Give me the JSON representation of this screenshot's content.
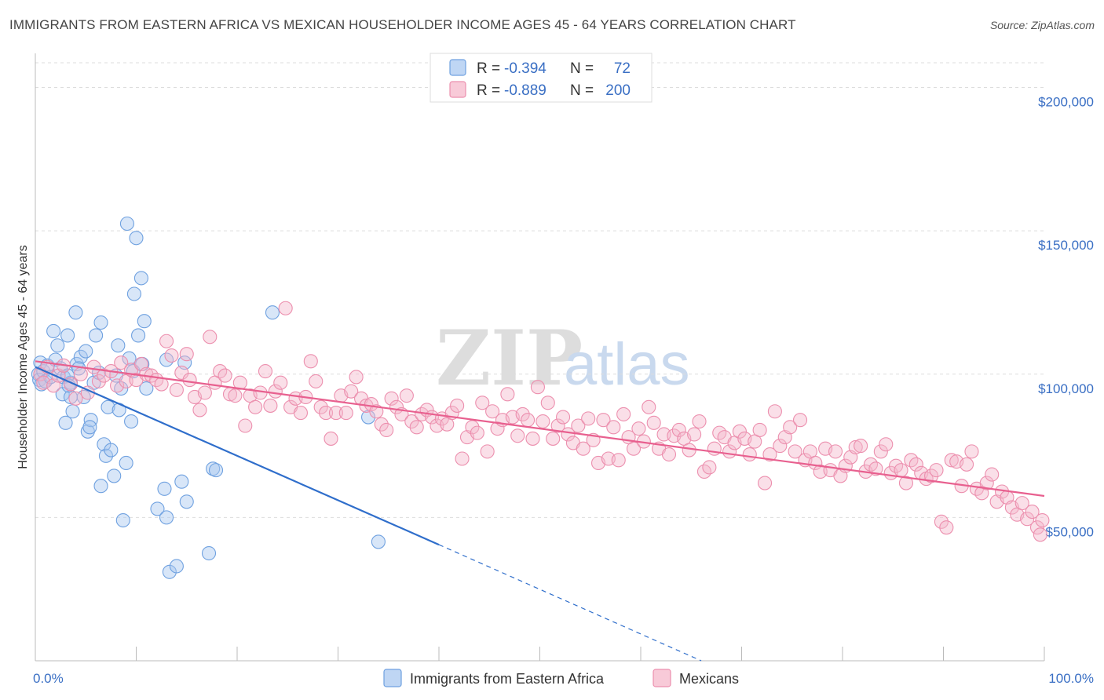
{
  "title": "IMMIGRANTS FROM EASTERN AFRICA VS MEXICAN HOUSEHOLDER INCOME AGES 45 - 64 YEARS CORRELATION CHART",
  "source": "Source: ZipAtlas.com",
  "watermark": {
    "zip": "ZIP",
    "atlas": "atlas"
  },
  "legend": {
    "rows": [
      {
        "r_label": "R = ",
        "r_value": "-0.394",
        "n_label": "N = ",
        "n_value": "72",
        "color": "#a9c8f0"
      },
      {
        "r_label": "R = ",
        "r_value": "-0.889",
        "n_label": "N = ",
        "n_value": "200",
        "color": "#f5b8cb"
      }
    ]
  },
  "chart_data": {
    "type": "scatter",
    "xlabel": "",
    "ylabel": "Householder Income Ages 45 - 64 years",
    "xlim": [
      0,
      100
    ],
    "ylim": [
      0,
      210000
    ],
    "x_tick_labels": [
      "0.0%",
      "100.0%"
    ],
    "y_ticks": [
      50000,
      100000,
      150000,
      200000
    ],
    "y_tick_labels": [
      "$50,000",
      "$100,000",
      "$150,000",
      "$200,000"
    ],
    "grid": true,
    "series": [
      {
        "name": "Immigrants from Eastern Africa",
        "color": "#6fa1e0",
        "fill": "#a9c8f0",
        "trend": {
          "x0": 0,
          "y0": 102500,
          "x1": 40,
          "y1": 40500,
          "dash_to_x": 66,
          "dash_to_y": 0,
          "color": "#2f6ecb"
        },
        "points": [
          [
            0.3,
            100000
          ],
          [
            0.4,
            98000
          ],
          [
            0.5,
            104000
          ],
          [
            0.6,
            96500
          ],
          [
            0.8,
            101000
          ],
          [
            1.0,
            97500
          ],
          [
            1.2,
            103000
          ],
          [
            1.5,
            99000
          ],
          [
            1.8,
            115000
          ],
          [
            2.0,
            105000
          ],
          [
            2.2,
            110000
          ],
          [
            2.5,
            102000
          ],
          [
            2.7,
            93000
          ],
          [
            2.8,
            99000
          ],
          [
            3.0,
            83000
          ],
          [
            3.2,
            113500
          ],
          [
            3.5,
            92000
          ],
          [
            3.7,
            87000
          ],
          [
            3.5,
            97000
          ],
          [
            3.2,
            99500
          ],
          [
            3.3,
            96000
          ],
          [
            4.0,
            121500
          ],
          [
            4.1,
            103500
          ],
          [
            4.5,
            106000
          ],
          [
            4.8,
            92000
          ],
          [
            4.3,
            102000
          ],
          [
            5.0,
            108000
          ],
          [
            5.2,
            80000
          ],
          [
            5.5,
            84000
          ],
          [
            5.4,
            81500
          ],
          [
            5.8,
            97000
          ],
          [
            6.0,
            113500
          ],
          [
            6.3,
            100500
          ],
          [
            6.5,
            61000
          ],
          [
            6.8,
            75500
          ],
          [
            7.0,
            71500
          ],
          [
            7.2,
            88500
          ],
          [
            7.5,
            73500
          ],
          [
            7.8,
            64500
          ],
          [
            8.0,
            99500
          ],
          [
            8.3,
            87500
          ],
          [
            8.5,
            95000
          ],
          [
            8.7,
            49000
          ],
          [
            9.0,
            69000
          ],
          [
            9.3,
            105500
          ],
          [
            9.5,
            83500
          ],
          [
            9.7,
            101000
          ],
          [
            10.0,
            147500
          ],
          [
            10.2,
            113500
          ],
          [
            10.5,
            133500
          ],
          [
            8.2,
            110000
          ],
          [
            6.5,
            118000
          ],
          [
            9.1,
            152500
          ],
          [
            9.8,
            128000
          ],
          [
            10.8,
            118500
          ],
          [
            11.0,
            95000
          ],
          [
            10.6,
            103500
          ],
          [
            12.1,
            53000
          ],
          [
            12.8,
            60000
          ],
          [
            13.0,
            50000
          ],
          [
            13.3,
            31000
          ],
          [
            14.0,
            33000
          ],
          [
            14.5,
            62500
          ],
          [
            15.0,
            55500
          ],
          [
            17.2,
            37500
          ],
          [
            17.6,
            67000
          ],
          [
            17.9,
            66500
          ],
          [
            14.8,
            104000
          ],
          [
            13.0,
            105000
          ],
          [
            23.5,
            121500
          ],
          [
            33.0,
            85000
          ],
          [
            34.0,
            41500
          ]
        ]
      },
      {
        "name": "Mexicans",
        "color": "#ec8fae",
        "fill": "#f5b8cb",
        "trend": {
          "x0": 0,
          "y0": 104500,
          "x1": 100,
          "y1": 57500,
          "color": "#e8608f"
        },
        "points": [
          [
            0.5,
            100000
          ],
          [
            0.8,
            97000
          ],
          [
            1.2,
            102500
          ],
          [
            1.8,
            96000
          ],
          [
            2.3,
            99500
          ],
          [
            2.8,
            103000
          ],
          [
            3.5,
            96500
          ],
          [
            4.0,
            91500
          ],
          [
            4.5,
            100000
          ],
          [
            5.2,
            93500
          ],
          [
            5.8,
            102500
          ],
          [
            6.3,
            97500
          ],
          [
            6.8,
            99500
          ],
          [
            7.5,
            101000
          ],
          [
            8.1,
            96000
          ],
          [
            8.5,
            104000
          ],
          [
            9.0,
            97500
          ],
          [
            9.5,
            101500
          ],
          [
            10.0,
            98000
          ],
          [
            10.5,
            103500
          ],
          [
            11.0,
            100000
          ],
          [
            11.5,
            99500
          ],
          [
            12.0,
            98000
          ],
          [
            12.5,
            96500
          ],
          [
            13.0,
            111500
          ],
          [
            13.5,
            106500
          ],
          [
            14.0,
            94500
          ],
          [
            14.5,
            100500
          ],
          [
            15.0,
            107000
          ],
          [
            15.3,
            98000
          ],
          [
            15.8,
            92000
          ],
          [
            16.3,
            87500
          ],
          [
            16.8,
            93500
          ],
          [
            17.3,
            113000
          ],
          [
            17.8,
            97000
          ],
          [
            18.3,
            101000
          ],
          [
            18.8,
            99500
          ],
          [
            19.3,
            93000
          ],
          [
            19.8,
            92500
          ],
          [
            20.3,
            97000
          ],
          [
            20.8,
            82000
          ],
          [
            21.3,
            92500
          ],
          [
            21.8,
            88500
          ],
          [
            22.3,
            93500
          ],
          [
            22.8,
            101000
          ],
          [
            23.3,
            89000
          ],
          [
            23.8,
            94000
          ],
          [
            24.3,
            97000
          ],
          [
            24.8,
            123000
          ],
          [
            25.3,
            88500
          ],
          [
            25.8,
            91500
          ],
          [
            26.3,
            86500
          ],
          [
            26.8,
            92000
          ],
          [
            27.3,
            104500
          ],
          [
            27.8,
            97500
          ],
          [
            28.3,
            88500
          ],
          [
            28.8,
            86500
          ],
          [
            29.3,
            77500
          ],
          [
            29.8,
            86500
          ],
          [
            30.3,
            92500
          ],
          [
            30.8,
            86500
          ],
          [
            31.3,
            94000
          ],
          [
            31.8,
            99000
          ],
          [
            32.3,
            91500
          ],
          [
            32.8,
            89000
          ],
          [
            33.3,
            89500
          ],
          [
            33.8,
            87000
          ],
          [
            34.3,
            82500
          ],
          [
            34.8,
            80500
          ],
          [
            35.3,
            91500
          ],
          [
            35.8,
            88500
          ],
          [
            36.3,
            86000
          ],
          [
            36.8,
            92500
          ],
          [
            37.3,
            83500
          ],
          [
            37.8,
            81500
          ],
          [
            38.3,
            86000
          ],
          [
            38.8,
            87500
          ],
          [
            39.3,
            85000
          ],
          [
            39.8,
            82000
          ],
          [
            40.3,
            84500
          ],
          [
            40.8,
            82500
          ],
          [
            41.3,
            86500
          ],
          [
            41.8,
            89000
          ],
          [
            42.3,
            70500
          ],
          [
            42.8,
            78000
          ],
          [
            43.3,
            81500
          ],
          [
            43.8,
            79500
          ],
          [
            44.3,
            90000
          ],
          [
            44.8,
            73000
          ],
          [
            45.3,
            87000
          ],
          [
            45.8,
            81000
          ],
          [
            46.3,
            84000
          ],
          [
            46.8,
            93000
          ],
          [
            47.3,
            85000
          ],
          [
            47.8,
            78500
          ],
          [
            48.3,
            86000
          ],
          [
            48.8,
            84000
          ],
          [
            49.3,
            77500
          ],
          [
            49.8,
            95500
          ],
          [
            50.3,
            83500
          ],
          [
            50.8,
            90000
          ],
          [
            51.3,
            77500
          ],
          [
            51.8,
            82000
          ],
          [
            52.3,
            85000
          ],
          [
            52.8,
            79000
          ],
          [
            53.3,
            76000
          ],
          [
            53.8,
            82000
          ],
          [
            54.3,
            74000
          ],
          [
            54.8,
            84500
          ],
          [
            55.3,
            77000
          ],
          [
            55.8,
            69000
          ],
          [
            56.3,
            84000
          ],
          [
            56.8,
            70500
          ],
          [
            57.3,
            81500
          ],
          [
            57.8,
            70000
          ],
          [
            58.3,
            86000
          ],
          [
            58.8,
            78000
          ],
          [
            59.3,
            74000
          ],
          [
            59.8,
            81000
          ],
          [
            60.3,
            76500
          ],
          [
            60.8,
            88500
          ],
          [
            61.3,
            83000
          ],
          [
            61.8,
            74000
          ],
          [
            62.3,
            79000
          ],
          [
            62.8,
            72000
          ],
          [
            63.3,
            78500
          ],
          [
            63.8,
            80500
          ],
          [
            64.3,
            77500
          ],
          [
            64.8,
            73500
          ],
          [
            65.3,
            79000
          ],
          [
            65.8,
            83500
          ],
          [
            66.3,
            66000
          ],
          [
            66.8,
            67500
          ],
          [
            67.3,
            74000
          ],
          [
            67.8,
            79500
          ],
          [
            68.3,
            78000
          ],
          [
            68.8,
            73000
          ],
          [
            69.3,
            76000
          ],
          [
            69.8,
            80000
          ],
          [
            70.3,
            77500
          ],
          [
            70.8,
            72000
          ],
          [
            71.3,
            76500
          ],
          [
            71.8,
            80500
          ],
          [
            72.3,
            62000
          ],
          [
            72.8,
            72000
          ],
          [
            73.3,
            87000
          ],
          [
            73.8,
            75000
          ],
          [
            74.3,
            78000
          ],
          [
            74.8,
            81500
          ],
          [
            75.3,
            73000
          ],
          [
            75.8,
            84000
          ],
          [
            76.3,
            70000
          ],
          [
            76.8,
            73000
          ],
          [
            77.3,
            69000
          ],
          [
            77.8,
            66000
          ],
          [
            78.3,
            74000
          ],
          [
            78.8,
            66500
          ],
          [
            79.3,
            73000
          ],
          [
            79.8,
            64500
          ],
          [
            80.3,
            68000
          ],
          [
            80.8,
            71000
          ],
          [
            81.3,
            74500
          ],
          [
            81.8,
            75000
          ],
          [
            82.3,
            66000
          ],
          [
            82.8,
            68500
          ],
          [
            83.3,
            67000
          ],
          [
            83.8,
            73000
          ],
          [
            84.3,
            75500
          ],
          [
            84.8,
            65500
          ],
          [
            85.3,
            68000
          ],
          [
            85.8,
            66500
          ],
          [
            86.3,
            62000
          ],
          [
            86.8,
            70000
          ],
          [
            87.3,
            68500
          ],
          [
            87.8,
            65500
          ],
          [
            88.3,
            63500
          ],
          [
            88.8,
            64500
          ],
          [
            89.3,
            66500
          ],
          [
            89.8,
            48500
          ],
          [
            90.3,
            46500
          ],
          [
            90.8,
            70000
          ],
          [
            91.3,
            69500
          ],
          [
            91.8,
            61000
          ],
          [
            92.3,
            68500
          ],
          [
            92.8,
            73000
          ],
          [
            93.3,
            60000
          ],
          [
            93.8,
            58500
          ],
          [
            94.3,
            62000
          ],
          [
            94.8,
            65000
          ],
          [
            95.3,
            55500
          ],
          [
            95.8,
            59000
          ],
          [
            96.3,
            57000
          ],
          [
            96.8,
            53500
          ],
          [
            97.3,
            51000
          ],
          [
            97.8,
            55000
          ],
          [
            98.3,
            49500
          ],
          [
            98.8,
            52000
          ],
          [
            99.3,
            46500
          ],
          [
            99.6,
            44000
          ],
          [
            99.8,
            49000
          ]
        ]
      }
    ]
  }
}
